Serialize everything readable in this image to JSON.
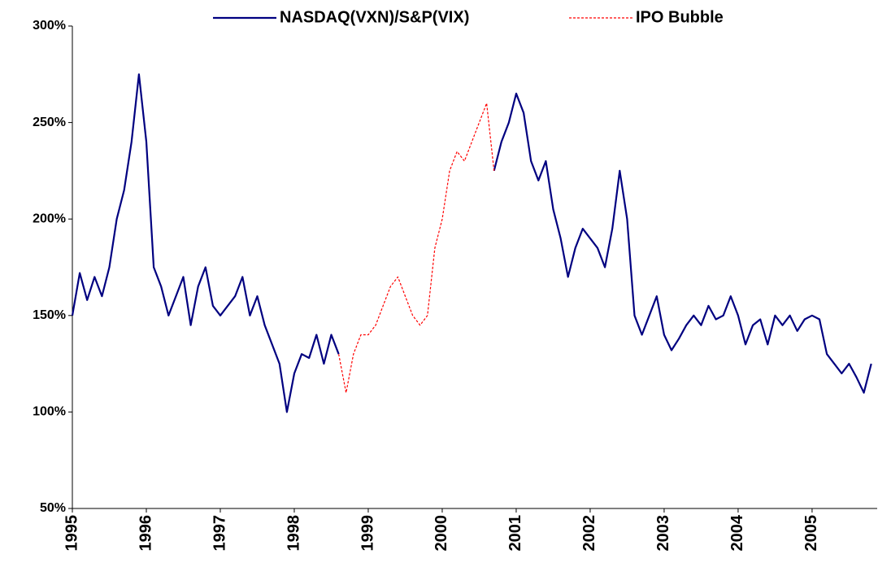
{
  "chart_data": {
    "type": "line",
    "x": [
      1995.0,
      1995.1,
      1995.2,
      1995.3,
      1995.4,
      1995.5,
      1995.6,
      1995.7,
      1995.8,
      1995.9,
      1996.0,
      1996.1,
      1996.2,
      1996.3,
      1996.4,
      1996.5,
      1996.6,
      1996.7,
      1996.8,
      1996.9,
      1997.0,
      1997.1,
      1997.2,
      1997.3,
      1997.4,
      1997.5,
      1997.6,
      1997.7,
      1997.8,
      1997.9,
      1998.0,
      1998.1,
      1998.2,
      1998.3,
      1998.4,
      1998.5,
      1998.6,
      1998.7,
      1998.8,
      1998.9,
      1999.0,
      1999.1,
      1999.2,
      1999.3,
      1999.4,
      1999.5,
      1999.6,
      1999.7,
      1999.8,
      1999.9,
      2000.0,
      2000.1,
      2000.2,
      2000.3,
      2000.4,
      2000.5,
      2000.6,
      2000.7,
      2000.8,
      2000.9,
      2001.0,
      2001.1,
      2001.2,
      2001.3,
      2001.4,
      2001.5,
      2001.6,
      2001.7,
      2001.8,
      2001.9,
      2002.0,
      2002.1,
      2002.2,
      2002.3,
      2002.4,
      2002.5,
      2002.6,
      2002.7,
      2002.8,
      2002.9,
      2003.0,
      2003.1,
      2003.2,
      2003.3,
      2003.4,
      2003.5,
      2003.6,
      2003.7,
      2003.8,
      2003.9,
      2004.0,
      2004.1,
      2004.2,
      2004.3,
      2004.4,
      2004.5,
      2004.6,
      2004.7,
      2004.8,
      2004.9,
      2005.0,
      2005.1,
      2005.2,
      2005.3,
      2005.4,
      2005.5,
      2005.6,
      2005.7,
      2005.8
    ],
    "series": [
      {
        "name": "NASDAQ(VXN)/S&P(VIX)",
        "color": "#000080",
        "dash": false,
        "values": [
          150,
          172,
          158,
          170,
          160,
          175,
          200,
          215,
          240,
          275,
          240,
          175,
          165,
          150,
          160,
          170,
          145,
          165,
          175,
          155,
          150,
          155,
          160,
          170,
          150,
          160,
          145,
          135,
          125,
          100,
          120,
          130,
          128,
          140,
          125,
          140,
          130,
          null,
          null,
          null,
          null,
          null,
          null,
          null,
          null,
          null,
          null,
          null,
          null,
          null,
          null,
          null,
          null,
          null,
          null,
          null,
          null,
          225,
          240,
          250,
          265,
          255,
          230,
          220,
          230,
          205,
          190,
          170,
          185,
          195,
          190,
          185,
          175,
          195,
          225,
          200,
          150,
          140,
          150,
          160,
          140,
          132,
          138,
          145,
          150,
          145,
          155,
          148,
          150,
          160,
          150,
          135,
          145,
          148,
          135,
          150,
          145,
          150,
          142,
          148,
          150,
          148,
          130,
          125,
          120,
          125,
          118,
          110,
          125
        ]
      },
      {
        "name": "IPO Bubble",
        "color": "#ff0000",
        "dash": true,
        "values": [
          null,
          null,
          null,
          null,
          null,
          null,
          null,
          null,
          null,
          null,
          null,
          null,
          null,
          null,
          null,
          null,
          null,
          null,
          null,
          null,
          null,
          null,
          null,
          null,
          null,
          null,
          null,
          null,
          null,
          null,
          null,
          null,
          null,
          null,
          null,
          null,
          130,
          110,
          130,
          140,
          140,
          145,
          155,
          165,
          170,
          160,
          150,
          145,
          150,
          185,
          200,
          225,
          235,
          230,
          240,
          250,
          260,
          225,
          null,
          null,
          null,
          null,
          null,
          null,
          null,
          null,
          null,
          null,
          null,
          null,
          null,
          null,
          null,
          null,
          null,
          null,
          null,
          null,
          null,
          null,
          null,
          null,
          null,
          null,
          null,
          null,
          null,
          null,
          null,
          null,
          null,
          null,
          null,
          null,
          null,
          null,
          null,
          null,
          null,
          null,
          null,
          null,
          null,
          null,
          null,
          null,
          null,
          null,
          null
        ]
      }
    ],
    "xlim": [
      1995,
      2005.88
    ],
    "xticks": [
      1995,
      1996,
      1997,
      1998,
      1999,
      2000,
      2001,
      2002,
      2003,
      2004,
      2005
    ],
    "ylim": [
      50,
      300
    ],
    "yticks": [
      {
        "value": 50,
        "label": "50%"
      },
      {
        "value": 100,
        "label": "100%"
      },
      {
        "value": 150,
        "label": "150%"
      },
      {
        "value": 200,
        "label": "200%"
      },
      {
        "value": 250,
        "label": "250%"
      },
      {
        "value": 300,
        "label": "300%"
      }
    ],
    "grid": false,
    "legend": "top"
  }
}
